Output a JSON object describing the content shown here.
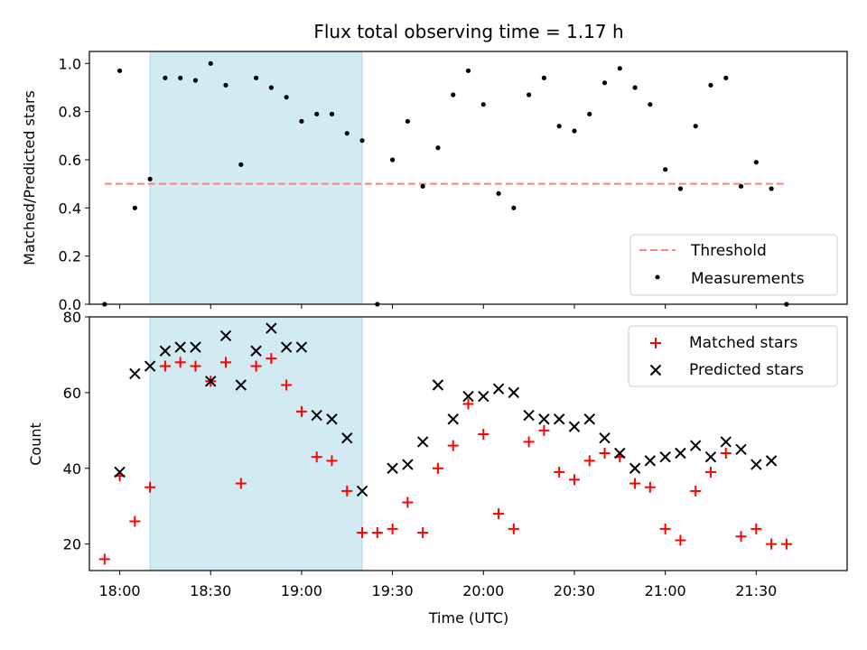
{
  "chart_data": [
    {
      "type": "scatter",
      "title": "Flux total observing time = 1.17 h",
      "xlabel": "",
      "ylabel": "Matched/Predicted stars",
      "xlim": [
        "17:50",
        "22:00"
      ],
      "ylim": [
        0,
        1.05
      ],
      "yticks": [
        "0.0",
        "0.2",
        "0.4",
        "0.6",
        "0.8",
        "1.0"
      ],
      "highlight_span": {
        "start": "18:10",
        "end": "19:20",
        "color": "#add8e6"
      },
      "threshold": {
        "name": "Threshold",
        "y": 0.5,
        "x_start": "17:55",
        "x_end": "21:40",
        "color": "#ff7f7f"
      },
      "legend": {
        "position": "lower right",
        "entries": [
          "Threshold",
          "Measurements"
        ]
      },
      "series": [
        {
          "name": "Measurements",
          "color": "#000000",
          "x": [
            "17:55",
            "18:00",
            "18:05",
            "18:10",
            "18:15",
            "18:20",
            "18:25",
            "18:30",
            "18:35",
            "18:40",
            "18:45",
            "18:50",
            "18:55",
            "19:00",
            "19:05",
            "19:10",
            "19:15",
            "19:20",
            "19:25",
            "19:30",
            "19:35",
            "19:40",
            "19:45",
            "19:50",
            "19:55",
            "20:00",
            "20:05",
            "20:10",
            "20:15",
            "20:20",
            "20:25",
            "20:30",
            "20:35",
            "20:40",
            "20:45",
            "20:50",
            "20:55",
            "21:00",
            "21:05",
            "21:10",
            "21:15",
            "21:20",
            "21:25",
            "21:30",
            "21:35",
            "21:40"
          ],
          "y": [
            0.0,
            0.97,
            0.4,
            0.52,
            0.94,
            0.94,
            0.93,
            1.0,
            0.91,
            0.58,
            0.94,
            0.9,
            0.86,
            0.76,
            0.79,
            0.79,
            0.71,
            0.68,
            0.0,
            0.6,
            0.76,
            0.49,
            0.65,
            0.87,
            0.97,
            0.83,
            0.46,
            0.4,
            0.87,
            0.94,
            0.74,
            0.72,
            0.79,
            0.92,
            0.98,
            0.9,
            0.83,
            0.56,
            0.48,
            0.74,
            0.91,
            0.94,
            0.49,
            0.59,
            0.48,
            0.0
          ]
        }
      ]
    },
    {
      "type": "scatter",
      "title": "",
      "xlabel": "Time (UTC)",
      "ylabel": "Count",
      "xlim": [
        "17:50",
        "22:00"
      ],
      "ylim": [
        13,
        80
      ],
      "xticks": [
        "18:00",
        "18:30",
        "19:00",
        "19:30",
        "20:00",
        "20:30",
        "21:00",
        "21:30"
      ],
      "yticks": [
        "20",
        "40",
        "60",
        "80"
      ],
      "highlight_span": {
        "start": "18:10",
        "end": "19:20",
        "color": "#add8e6"
      },
      "legend": {
        "position": "upper right",
        "entries": [
          "Matched stars",
          "Predicted stars"
        ]
      },
      "series": [
        {
          "name": "Matched stars",
          "marker": "plus",
          "color": "#ff0000",
          "x": [
            "17:55",
            "18:00",
            "18:05",
            "18:10",
            "18:15",
            "18:20",
            "18:25",
            "18:30",
            "18:35",
            "18:40",
            "18:45",
            "18:50",
            "18:55",
            "19:00",
            "19:05",
            "19:10",
            "19:15",
            "19:20",
            "19:25",
            "19:30",
            "19:35",
            "19:40",
            "19:45",
            "19:50",
            "19:55",
            "20:00",
            "20:05",
            "20:10",
            "20:15",
            "20:20",
            "20:25",
            "20:30",
            "20:35",
            "20:40",
            "20:45",
            "20:50",
            "20:55",
            "21:00",
            "21:05",
            "21:10",
            "21:15",
            "21:20",
            "21:25",
            "21:30",
            "21:35",
            "21:40"
          ],
          "y": [
            16,
            38,
            26,
            35,
            67,
            68,
            67,
            63,
            68,
            36,
            67,
            69,
            62,
            55,
            43,
            42,
            34,
            23,
            23,
            24,
            31,
            23,
            40,
            46,
            57,
            49,
            28,
            24,
            47,
            50,
            39,
            37,
            42,
            44,
            43,
            36,
            35,
            24,
            21,
            34,
            39,
            44,
            22,
            24,
            20,
            20
          ]
        },
        {
          "name": "Predicted stars",
          "marker": "x",
          "color": "#000000",
          "x": [
            "18:00",
            "18:05",
            "18:10",
            "18:15",
            "18:20",
            "18:25",
            "18:30",
            "18:35",
            "18:40",
            "18:45",
            "18:50",
            "18:55",
            "19:00",
            "19:05",
            "19:10",
            "19:15",
            "19:20",
            "19:30",
            "19:35",
            "19:40",
            "19:45",
            "19:50",
            "19:55",
            "20:00",
            "20:05",
            "20:10",
            "20:15",
            "20:20",
            "20:25",
            "20:30",
            "20:35",
            "20:40",
            "20:45",
            "20:50",
            "20:55",
            "21:00",
            "21:05",
            "21:10",
            "21:15",
            "21:20",
            "21:25",
            "21:30",
            "21:35"
          ],
          "y": [
            39,
            65,
            67,
            71,
            72,
            72,
            63,
            75,
            62,
            71,
            77,
            72,
            72,
            54,
            53,
            48,
            34,
            40,
            41,
            47,
            62,
            53,
            59,
            59,
            61,
            60,
            54,
            53,
            53,
            51,
            53,
            48,
            44,
            40,
            42,
            43,
            44,
            46,
            43,
            47,
            45,
            41,
            42
          ]
        }
      ]
    }
  ]
}
